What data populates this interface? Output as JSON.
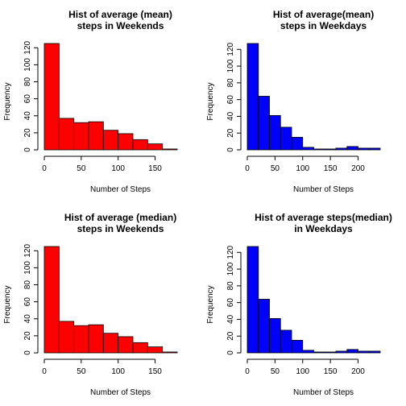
{
  "chart_data": [
    {
      "type": "bar",
      "title": [
        "Hist of average (mean)",
        "steps in Weekends"
      ],
      "xlabel": "Number of Steps",
      "ylabel": "Frequency",
      "color": "#ff0000",
      "bin_edges": [
        0,
        20,
        40,
        60,
        80,
        100,
        120,
        140,
        160,
        180
      ],
      "values": [
        125,
        37,
        32,
        33,
        23,
        19,
        12,
        7,
        1
      ],
      "xlim": [
        0,
        180
      ],
      "ylim": [
        0,
        125
      ],
      "xticks": [
        0,
        50,
        100,
        150
      ],
      "yticks": [
        0,
        20,
        40,
        60,
        80,
        100,
        120
      ]
    },
    {
      "type": "bar",
      "title": [
        "Hist of average(mean)",
        "steps in Weekdays"
      ],
      "xlabel": "Number of Steps",
      "ylabel": "Frequency",
      "color": "#0000ff",
      "bin_edges": [
        0,
        20,
        40,
        60,
        80,
        100,
        120,
        140,
        160,
        180,
        200,
        220,
        240
      ],
      "values": [
        127,
        64,
        41,
        27,
        15,
        3,
        1,
        1,
        2,
        4,
        2,
        2
      ],
      "xlim": [
        0,
        240
      ],
      "ylim": [
        0,
        127
      ],
      "xticks": [
        0,
        50,
        100,
        150,
        200
      ],
      "yticks": [
        0,
        20,
        40,
        60,
        80,
        100,
        120
      ]
    },
    {
      "type": "bar",
      "title": [
        "Hist of average (median)",
        "steps in Weekends"
      ],
      "xlabel": "Number of Steps",
      "ylabel": "Frequency",
      "color": "#ff0000",
      "bin_edges": [
        0,
        20,
        40,
        60,
        80,
        100,
        120,
        140,
        160,
        180
      ],
      "values": [
        125,
        37,
        32,
        33,
        23,
        19,
        12,
        7,
        1
      ],
      "xlim": [
        0,
        180
      ],
      "ylim": [
        0,
        125
      ],
      "xticks": [
        0,
        50,
        100,
        150
      ],
      "yticks": [
        0,
        20,
        40,
        60,
        80,
        100,
        120
      ]
    },
    {
      "type": "bar",
      "title": [
        "Hist of average steps(median)",
        "in Weekdays"
      ],
      "xlabel": "Number of Steps",
      "ylabel": "Frequency",
      "color": "#0000ff",
      "bin_edges": [
        0,
        20,
        40,
        60,
        80,
        100,
        120,
        140,
        160,
        180,
        200,
        220,
        240
      ],
      "values": [
        127,
        64,
        41,
        27,
        15,
        3,
        1,
        1,
        2,
        4,
        2,
        2
      ],
      "xlim": [
        0,
        240
      ],
      "ylim": [
        0,
        127
      ],
      "xticks": [
        0,
        50,
        100,
        150,
        200
      ],
      "yticks": [
        0,
        20,
        40,
        60,
        80,
        100,
        120
      ]
    }
  ]
}
